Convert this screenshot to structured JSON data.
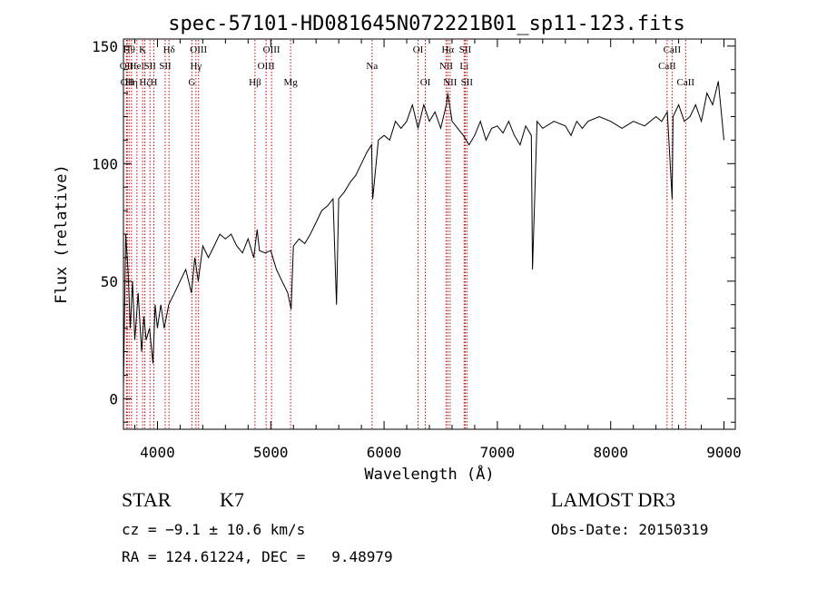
{
  "chart_data": {
    "type": "line",
    "title": "spec-57101-HD081645N072221B01_sp11-123.fits",
    "xlabel": "Wavelength (Å)",
    "ylabel": "Flux (relative)",
    "xlim": [
      3700,
      9100
    ],
    "ylim": [
      -13,
      153
    ],
    "xticks": [
      4000,
      5000,
      6000,
      7000,
      8000,
      9000
    ],
    "yticks": [
      0,
      50,
      100,
      150
    ],
    "grid": false,
    "series": [
      {
        "name": "flux",
        "x": [
          3700,
          3720,
          3740,
          3760,
          3780,
          3800,
          3830,
          3860,
          3880,
          3900,
          3930,
          3960,
          3980,
          4000,
          4030,
          4060,
          4100,
          4150,
          4200,
          4250,
          4300,
          4330,
          4360,
          4400,
          4450,
          4500,
          4550,
          4600,
          4650,
          4700,
          4750,
          4800,
          4850,
          4880,
          4900,
          4950,
          5000,
          5050,
          5100,
          5150,
          5180,
          5200,
          5250,
          5300,
          5350,
          5400,
          5450,
          5500,
          5550,
          5580,
          5600,
          5650,
          5700,
          5750,
          5800,
          5850,
          5890,
          5895,
          5900,
          5950,
          6000,
          6050,
          6100,
          6150,
          6200,
          6250,
          6300,
          6350,
          6400,
          6450,
          6500,
          6550,
          6563,
          6600,
          6650,
          6700,
          6750,
          6800,
          6850,
          6900,
          6950,
          7000,
          7050,
          7100,
          7150,
          7200,
          7250,
          7300,
          7310,
          7350,
          7400,
          7500,
          7600,
          7650,
          7700,
          7750,
          7800,
          7900,
          8000,
          8100,
          8200,
          8300,
          8400,
          8450,
          8500,
          8542,
          8550,
          8600,
          8650,
          8700,
          8750,
          8800,
          8850,
          8900,
          8950,
          9000
        ],
        "y": [
          5,
          70,
          55,
          30,
          50,
          25,
          45,
          20,
          35,
          25,
          30,
          15,
          40,
          30,
          40,
          30,
          40,
          45,
          50,
          55,
          45,
          60,
          50,
          65,
          60,
          65,
          70,
          68,
          70,
          65,
          62,
          68,
          60,
          72,
          63,
          62,
          63,
          55,
          50,
          45,
          38,
          65,
          68,
          66,
          70,
          75,
          80,
          82,
          85,
          40,
          85,
          88,
          92,
          95,
          100,
          105,
          108,
          95,
          85,
          110,
          112,
          110,
          118,
          115,
          118,
          125,
          115,
          125,
          118,
          122,
          115,
          125,
          130,
          118,
          115,
          112,
          108,
          112,
          118,
          110,
          115,
          116,
          113,
          118,
          112,
          108,
          116,
          112,
          55,
          118,
          115,
          118,
          116,
          112,
          118,
          115,
          118,
          120,
          118,
          115,
          118,
          116,
          120,
          118,
          122,
          85,
          120,
          125,
          118,
          120,
          125,
          118,
          130,
          125,
          135,
          110
        ]
      }
    ],
    "line_markers": [
      {
        "x": 3727,
        "label": "OII",
        "row": 2
      },
      {
        "x": 3734,
        "label": "OII",
        "row": 3
      },
      {
        "x": 3750,
        "label": "Hθ",
        "row": 1
      },
      {
        "x": 3771,
        "label": "Hη",
        "row": 3
      },
      {
        "x": 3819,
        "label": "HeI",
        "row": 2
      },
      {
        "x": 3869,
        "label": "K",
        "row": 1
      },
      {
        "x": 3889,
        "label": "Hζ",
        "row": 3
      },
      {
        "x": 3934,
        "label": "SII",
        "row": 2
      },
      {
        "x": 3968,
        "label": "H",
        "row": 3
      },
      {
        "x": 4102,
        "label": "Hδ",
        "row": 1
      },
      {
        "x": 4068,
        "label": "SII",
        "row": 2
      },
      {
        "x": 4304,
        "label": "G",
        "row": 3
      },
      {
        "x": 4340,
        "label": "Hγ",
        "row": 2
      },
      {
        "x": 4363,
        "label": "OIII",
        "row": 1
      },
      {
        "x": 4861,
        "label": "Hβ",
        "row": 3
      },
      {
        "x": 4959,
        "label": "OIII",
        "row": 2
      },
      {
        "x": 5007,
        "label": "OIII",
        "row": 1
      },
      {
        "x": 5175,
        "label": "Mg",
        "row": 3
      },
      {
        "x": 5894,
        "label": "Na",
        "row": 2
      },
      {
        "x": 6300,
        "label": "OI",
        "row": 1
      },
      {
        "x": 6364,
        "label": "OI",
        "row": 3
      },
      {
        "x": 6548,
        "label": "NII",
        "row": 2
      },
      {
        "x": 6563,
        "label": "Hα",
        "row": 1
      },
      {
        "x": 6583,
        "label": "NII",
        "row": 3
      },
      {
        "x": 6707,
        "label": "Li",
        "row": 2
      },
      {
        "x": 6716,
        "label": "SII",
        "row": 1
      },
      {
        "x": 6731,
        "label": "SII",
        "row": 3
      },
      {
        "x": 8498,
        "label": "CaII",
        "row": 2
      },
      {
        "x": 8542,
        "label": "CaII",
        "row": 1
      },
      {
        "x": 8662,
        "label": "CaII",
        "row": 3
      }
    ]
  },
  "info": {
    "class": "STAR",
    "subclass": "K7",
    "survey": "LAMOST DR3",
    "cz": "cz = −9.1 ± 10.6 km/s",
    "obs_date": "Obs-Date: 20150319",
    "coords": "RA = 124.61224, DEC =   9.48979"
  }
}
